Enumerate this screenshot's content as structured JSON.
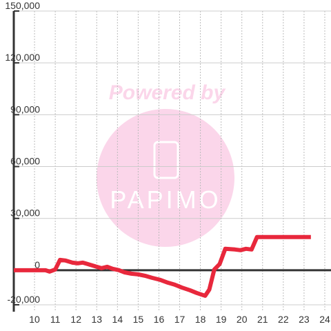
{
  "chart_data": {
    "type": "line",
    "watermark": [
      "Powered by",
      "PAPIMO"
    ],
    "x": [
      9.0,
      10.53,
      10.73,
      11.0,
      11.23,
      11.5,
      11.83,
      12.1,
      12.33,
      12.67,
      13.0,
      13.23,
      13.5,
      13.77,
      14.07,
      14.33,
      14.67,
      15.0,
      15.33,
      15.67,
      16.07,
      16.43,
      16.77,
      17.1,
      17.5,
      17.83,
      18.23,
      18.43,
      18.67,
      18.93,
      19.2,
      19.67,
      19.93,
      20.2,
      20.47,
      20.73,
      23.33
    ],
    "series": [
      {
        "color": "#e8283c",
        "values": [
          0,
          0,
          -800,
          400,
          6000,
          5600,
          4400,
          4000,
          4400,
          3200,
          2000,
          1200,
          2000,
          800,
          0,
          -1200,
          -2000,
          -2400,
          -3200,
          -4400,
          -5600,
          -7200,
          -8400,
          -10000,
          -11600,
          -13200,
          -14800,
          -11200,
          400,
          3600,
          12400,
          12000,
          11600,
          12400,
          12000,
          19200,
          19200
        ]
      }
    ],
    "xlim": [
      9,
      24.3
    ],
    "xticks": [
      10,
      11,
      12,
      13,
      14,
      15,
      16,
      17,
      18,
      19,
      20,
      21,
      22,
      23,
      24
    ],
    "ylim": [
      -24000,
      150000
    ],
    "yticks": [
      {
        "value": -20000,
        "label": "-20,000"
      },
      0,
      {
        "value": 30000,
        "label": "30,000"
      },
      {
        "value": 60000,
        "label": "60,000"
      },
      {
        "value": 90000,
        "label": "90,000"
      },
      {
        "value": 120000,
        "label": "120,000"
      },
      {
        "value": 150000,
        "label": "150,000"
      }
    ],
    "grid": true
  }
}
